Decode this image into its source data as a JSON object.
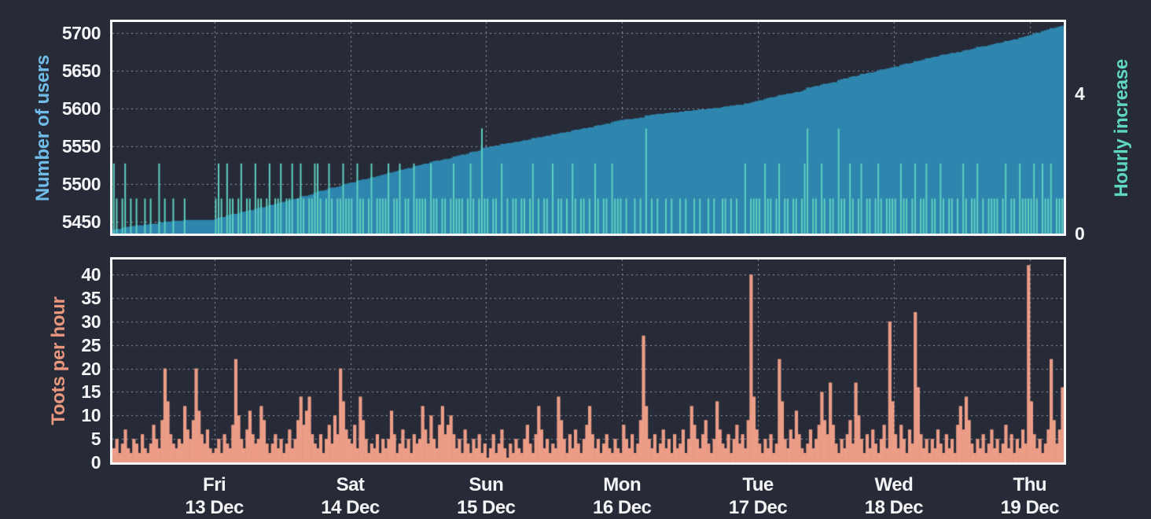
{
  "page": {
    "background": "#272b38",
    "frame_color": "#f5f5f6",
    "grid_color": "#9298a6",
    "tick_text_color": "#f4f4f6"
  },
  "chart_data": [
    {
      "type": "area",
      "panel": "top",
      "bins_total": 336,
      "bin_hours": 0.5,
      "left_axis": {
        "label": "Number of users",
        "label_color": "#70bce8",
        "ticks": [
          5450,
          5500,
          5550,
          5600,
          5650,
          5700
        ],
        "range": [
          5434,
          5715
        ]
      },
      "right_axis": {
        "label": "Hourly increase",
        "label_color": "#5fd6c0",
        "ticks": [
          0,
          4
        ],
        "range": [
          0,
          6.04
        ]
      },
      "series": [
        {
          "name": "users",
          "type": "area",
          "color": "#2e86ae",
          "axis": "left",
          "start": 5437,
          "note": "cumulative: start plus running sum of hourly_increase values",
          "end": 5710
        },
        {
          "name": "hourly_increase",
          "type": "bar",
          "color": "#5ecfbf",
          "axis": "right",
          "values": [
            2,
            1,
            0,
            1,
            2,
            0,
            1,
            0,
            1,
            0,
            0,
            1,
            0,
            1,
            0,
            0,
            2,
            0,
            1,
            0,
            0,
            1,
            0,
            0,
            0,
            1,
            0,
            0,
            0,
            0,
            0,
            0,
            0,
            0,
            0,
            0,
            1,
            2,
            1,
            0,
            2,
            1,
            1,
            0,
            1,
            2,
            0,
            1,
            1,
            0,
            2,
            1,
            1,
            0,
            1,
            2,
            0,
            1,
            1,
            2,
            0,
            1,
            1,
            2,
            0,
            1,
            2,
            1,
            0,
            1,
            1,
            2,
            2,
            1,
            0,
            1,
            2,
            1,
            0,
            1,
            1,
            2,
            1,
            1,
            1,
            0,
            2,
            1,
            1,
            0,
            1,
            2,
            0,
            1,
            1,
            1,
            1,
            2,
            0,
            1,
            1,
            2,
            0,
            1,
            1,
            0,
            2,
            1,
            1,
            1,
            1,
            0,
            2,
            1,
            1,
            0,
            1,
            1,
            0,
            1,
            2,
            1,
            1,
            1,
            0,
            1,
            2,
            1,
            0,
            1,
            3,
            1,
            1,
            0,
            1,
            1,
            0,
            2,
            0,
            1,
            0,
            1,
            1,
            0,
            1,
            1,
            0,
            1,
            2,
            0,
            1,
            0,
            1,
            1,
            0,
            2,
            0,
            1,
            1,
            0,
            1,
            0,
            2,
            1,
            0,
            1,
            1,
            0,
            1,
            0,
            2,
            1,
            0,
            1,
            1,
            0,
            2,
            1,
            1,
            1,
            0,
            1,
            0,
            0,
            1,
            0,
            1,
            0,
            3,
            0,
            1,
            0,
            1,
            0,
            0,
            1,
            0,
            1,
            0,
            0,
            1,
            0,
            1,
            0,
            0,
            1,
            0,
            1,
            0,
            0,
            1,
            0,
            1,
            0,
            0,
            1,
            1,
            0,
            1,
            0,
            1,
            0,
            0,
            2,
            0,
            1,
            1,
            1,
            1,
            0,
            2,
            1,
            1,
            0,
            1,
            2,
            0,
            1,
            1,
            0,
            1,
            1,
            0,
            1,
            2,
            3,
            0,
            1,
            1,
            0,
            2,
            1,
            0,
            1,
            1,
            0,
            3,
            1,
            1,
            0,
            2,
            1,
            0,
            1,
            2,
            0,
            1,
            1,
            0,
            1,
            2,
            1,
            0,
            1,
            1,
            1,
            1,
            0,
            2,
            1,
            1,
            0,
            1,
            2,
            0,
            1,
            1,
            2,
            0,
            1,
            1,
            0,
            2,
            1,
            0,
            1,
            1,
            0,
            1,
            0,
            2,
            1,
            0,
            1,
            1,
            2,
            0,
            1,
            0,
            1,
            1,
            1,
            1,
            0,
            1,
            2,
            0,
            1,
            1,
            0,
            2,
            1,
            1,
            1,
            1,
            2,
            1,
            0,
            2,
            1,
            1,
            2,
            0,
            1,
            1,
            1
          ]
        }
      ]
    },
    {
      "type": "area",
      "panel": "bottom",
      "bins_total": 336,
      "bin_hours": 0.5,
      "left_axis": {
        "label": "Toots per hour",
        "label_color": "#e9967e",
        "ticks": [
          0,
          5,
          10,
          15,
          20,
          25,
          30,
          35,
          40
        ],
        "range": [
          0,
          43.2
        ]
      },
      "series": [
        {
          "name": "toots_per_hour",
          "type": "area",
          "color": "#ec9d87",
          "axis": "left",
          "values": [
            3,
            5,
            2,
            4,
            7,
            3,
            2,
            5,
            4,
            2,
            6,
            3,
            2,
            4,
            8,
            5,
            3,
            9,
            20,
            13,
            6,
            4,
            3,
            5,
            4,
            12,
            7,
            5,
            9,
            20,
            11,
            6,
            4,
            7,
            3,
            2,
            3,
            5,
            2,
            6,
            4,
            3,
            8,
            22,
            10,
            5,
            3,
            7,
            11,
            6,
            4,
            5,
            12,
            9,
            4,
            2,
            4,
            6,
            3,
            5,
            2,
            4,
            7,
            3,
            5,
            9,
            14,
            8,
            11,
            14,
            6,
            4,
            3,
            6,
            2,
            5,
            8,
            4,
            10,
            6,
            20,
            13,
            7,
            5,
            4,
            8,
            3,
            14,
            9,
            5,
            2,
            4,
            3,
            6,
            2,
            5,
            3,
            5,
            11,
            6,
            2,
            4,
            7,
            3,
            5,
            2,
            6,
            4,
            5,
            12,
            7,
            4,
            10,
            5,
            3,
            8,
            12,
            6,
            8,
            10,
            6,
            3,
            5,
            2,
            7,
            4,
            2,
            5,
            3,
            6,
            2,
            4,
            1,
            3,
            6,
            2,
            4,
            7,
            3,
            1,
            4,
            2,
            5,
            3,
            2,
            5,
            8,
            4,
            2,
            6,
            12,
            7,
            3,
            5,
            2,
            4,
            3,
            14,
            9,
            5,
            2,
            6,
            3,
            7,
            4,
            2,
            5,
            8,
            12,
            6,
            3,
            5,
            2,
            4,
            6,
            3,
            2,
            5,
            3,
            2,
            8,
            5,
            3,
            6,
            2,
            4,
            9,
            27,
            12,
            5,
            3,
            6,
            2,
            4,
            7,
            3,
            5,
            2,
            6,
            3,
            4,
            7,
            2,
            5,
            12,
            8,
            5,
            3,
            6,
            9,
            4,
            2,
            5,
            13,
            7,
            4,
            3,
            6,
            2,
            5,
            8,
            4,
            6,
            3,
            9,
            40,
            14,
            7,
            4,
            2,
            5,
            3,
            6,
            2,
            4,
            22,
            13,
            5,
            3,
            7,
            5,
            11,
            6,
            3,
            2,
            4,
            7,
            3,
            5,
            8,
            15,
            9,
            6,
            17,
            8,
            4,
            2,
            5,
            3,
            6,
            9,
            4,
            17,
            10,
            5,
            2,
            6,
            3,
            7,
            4,
            2,
            5,
            8,
            3,
            30,
            13,
            6,
            3,
            8,
            5,
            2,
            7,
            4,
            32,
            16,
            6,
            3,
            5,
            2,
            5,
            3,
            7,
            4,
            2,
            6,
            3,
            5,
            2,
            8,
            12,
            7,
            14,
            9,
            4,
            2,
            5,
            3,
            6,
            2,
            4,
            7,
            3,
            5,
            2,
            4,
            8,
            3,
            6,
            2,
            5,
            3,
            7,
            4,
            42,
            13,
            6,
            3,
            5,
            2,
            4,
            7,
            22,
            9,
            4,
            7,
            16
          ]
        }
      ]
    }
  ],
  "x_axis": {
    "gridline_bins": [
      36,
      84,
      132,
      180,
      228,
      276,
      324
    ],
    "tick_labels": [
      {
        "day": "Fri",
        "date": "13 Dec"
      },
      {
        "day": "Sat",
        "date": "14 Dec"
      },
      {
        "day": "Sun",
        "date": "15 Dec"
      },
      {
        "day": "Mon",
        "date": "16 Dec"
      },
      {
        "day": "Tue",
        "date": "17 Dec"
      },
      {
        "day": "Wed",
        "date": "18 Dec"
      },
      {
        "day": "Thu",
        "date": "19 Dec"
      }
    ]
  }
}
